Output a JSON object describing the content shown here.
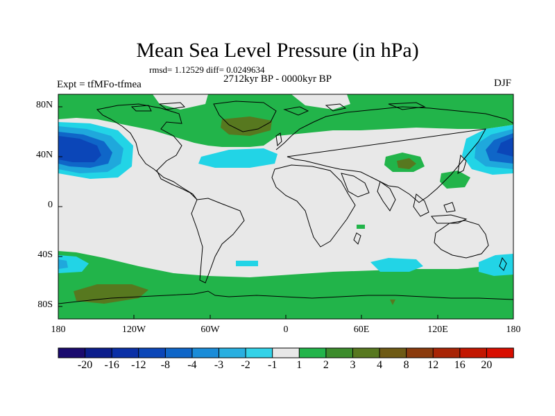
{
  "title": "Mean Sea Level Pressure (in hPa)",
  "stats_line": "rmsd= 1.12529 diff= 0.0249634",
  "period": "2712kyr BP - 0000kyr BP",
  "experiment": "Expt = tfMFo-tfmea",
  "season": "DJF",
  "lat_ticks": [
    {
      "label": "80N",
      "lat": 80
    },
    {
      "label": "40N",
      "lat": 40
    },
    {
      "label": "0",
      "lat": 0
    },
    {
      "label": "40S",
      "lat": -40
    },
    {
      "label": "80S",
      "lat": -80
    }
  ],
  "lon_ticks": [
    {
      "label": "180",
      "lon": -180
    },
    {
      "label": "120W",
      "lon": -120
    },
    {
      "label": "60W",
      "lon": -60
    },
    {
      "label": "0",
      "lon": 0
    },
    {
      "label": "60E",
      "lon": 60
    },
    {
      "label": "120E",
      "lon": 120
    },
    {
      "label": "180",
      "lon": 180
    }
  ],
  "colorbar": {
    "colors": [
      "#1a0a6e",
      "#0b1d8c",
      "#0a2fa6",
      "#0b46b8",
      "#0f66c8",
      "#1a8cd8",
      "#29afe0",
      "#33d2e8",
      "#e8e8e8",
      "#22b44a",
      "#3c8c2c",
      "#57781f",
      "#6e5a14",
      "#8a3a0c",
      "#a82405",
      "#c21600",
      "#d80e00"
    ],
    "labels": [
      "-20",
      "-16",
      "-12",
      "-8",
      "-4",
      "-3",
      "-2",
      "-1",
      "1",
      "2",
      "3",
      "4",
      "8",
      "12",
      "16",
      "20"
    ]
  },
  "colors": {
    "neutral": "#e8e8e8",
    "green": "#22b44a",
    "darkgreen": "#57781f",
    "cyan": "#22d4e6",
    "lightblue": "#1fa8dc",
    "blue": "#0f66c8",
    "darkblue": "#0b46b8"
  }
}
